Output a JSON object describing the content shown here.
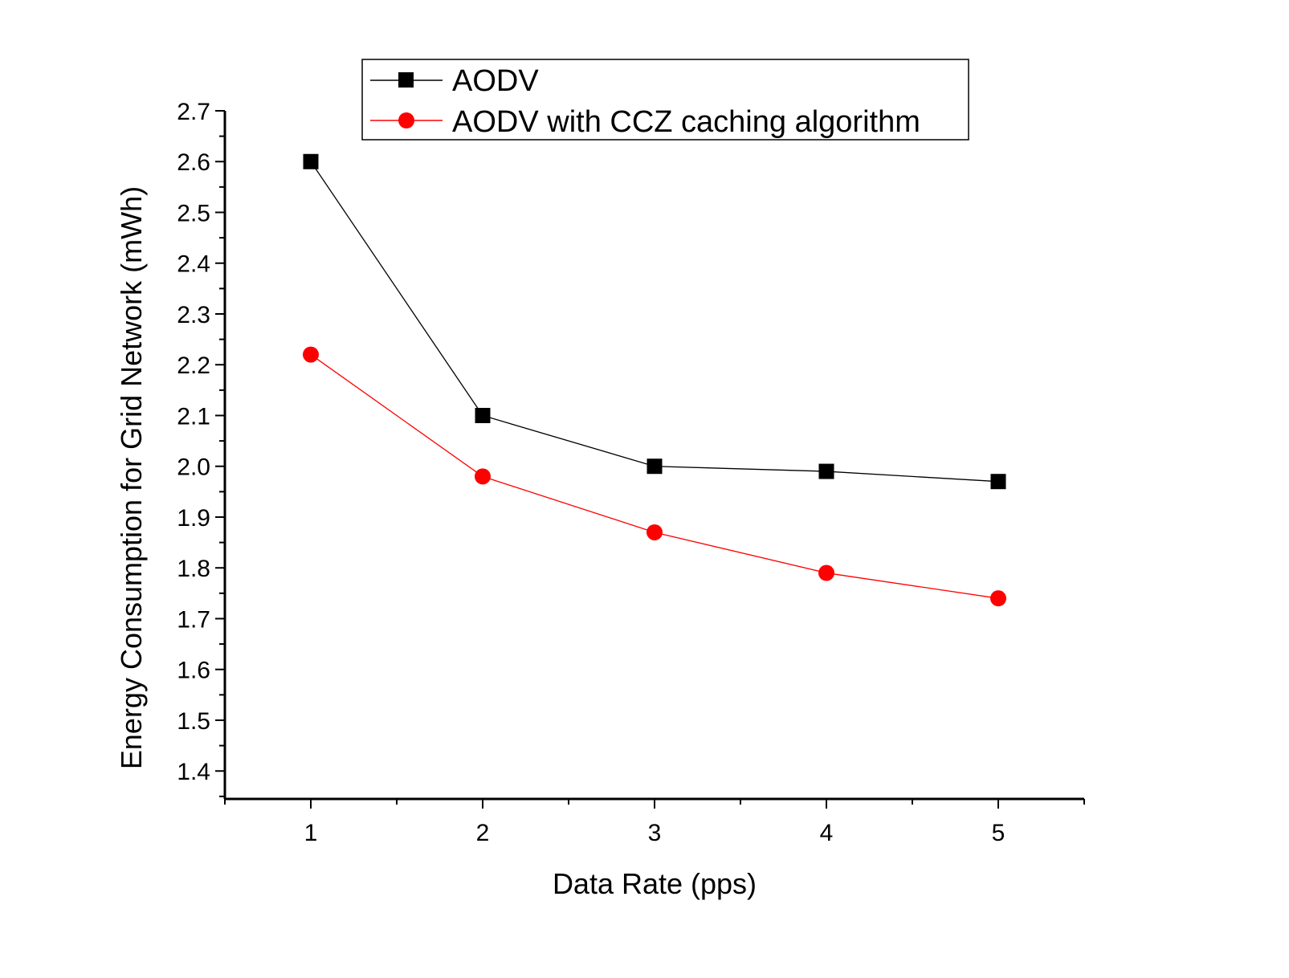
{
  "chart_data": {
    "type": "line",
    "title": "",
    "xlabel": "Data Rate (pps)",
    "ylabel": "Energy Consumption for Grid Network (mWh)",
    "x": [
      1,
      2,
      3,
      4,
      5
    ],
    "xlim": [
      0.5,
      5.5
    ],
    "ylim": [
      1.345,
      2.7
    ],
    "xticks": [
      1,
      2,
      3,
      4,
      5
    ],
    "xtick_labels": [
      "1",
      "2",
      "3",
      "4",
      "5"
    ],
    "yticks": [
      1.4,
      1.5,
      1.6,
      1.7,
      1.8,
      1.9,
      2.0,
      2.1,
      2.2,
      2.3,
      2.4,
      2.5,
      2.6,
      2.7
    ],
    "ytick_labels": [
      "1.4",
      "1.5",
      "1.6",
      "1.7",
      "1.8",
      "1.9",
      "2.0",
      "2.1",
      "2.2",
      "2.3",
      "2.4",
      "2.5",
      "2.6",
      "2.7"
    ],
    "grid": false,
    "legend_position": "top-center",
    "series": [
      {
        "name": "AODV",
        "color": "#000000",
        "marker": "square",
        "values": [
          2.6,
          2.1,
          2.0,
          1.99,
          1.97
        ]
      },
      {
        "name": "AODV with CCZ caching algorithm",
        "color": "#ff0000",
        "marker": "circle",
        "values": [
          2.22,
          1.98,
          1.87,
          1.79,
          1.74
        ]
      }
    ]
  }
}
